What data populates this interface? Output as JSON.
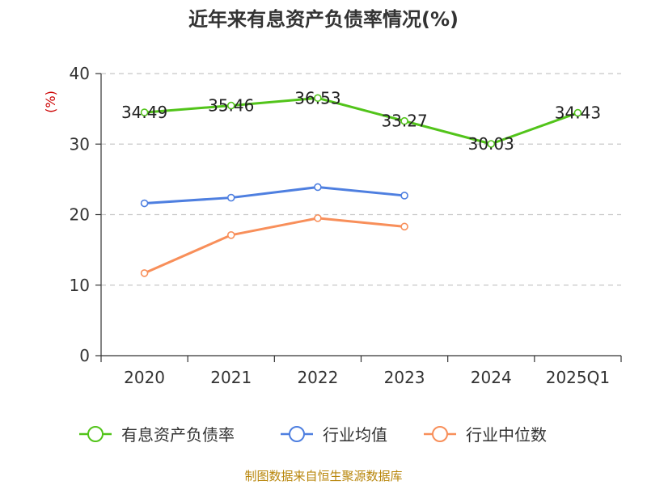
{
  "chart_data": {
    "type": "line",
    "title": "近年来有息资产负债率情况(%)",
    "ylabel": "(%)",
    "xlabel": "",
    "ylim": [
      0,
      40
    ],
    "yticks": [
      "0",
      "10",
      "20",
      "30",
      "40"
    ],
    "categories": [
      "2020",
      "2021",
      "2022",
      "2023",
      "2024",
      "2025Q1"
    ],
    "series": [
      {
        "name": "有息资产负债率",
        "color": "#52c41a",
        "values": [
          34.49,
          35.46,
          36.53,
          33.27,
          30.03,
          34.43
        ],
        "labels": [
          "34.49",
          "35.46",
          "36.53",
          "33.27",
          "30.03",
          "34.43"
        ]
      },
      {
        "name": "行业均值",
        "color": "#4e7fe0",
        "values": [
          21.6,
          22.4,
          23.9,
          22.7,
          null,
          null
        ]
      },
      {
        "name": "行业中位数",
        "color": "#f88f5a",
        "values": [
          11.7,
          17.1,
          19.5,
          18.3,
          null,
          null
        ]
      }
    ],
    "legend_position": "bottom",
    "grid": "horizontal-dashed",
    "source": "制图数据来自恒生聚源数据库"
  }
}
